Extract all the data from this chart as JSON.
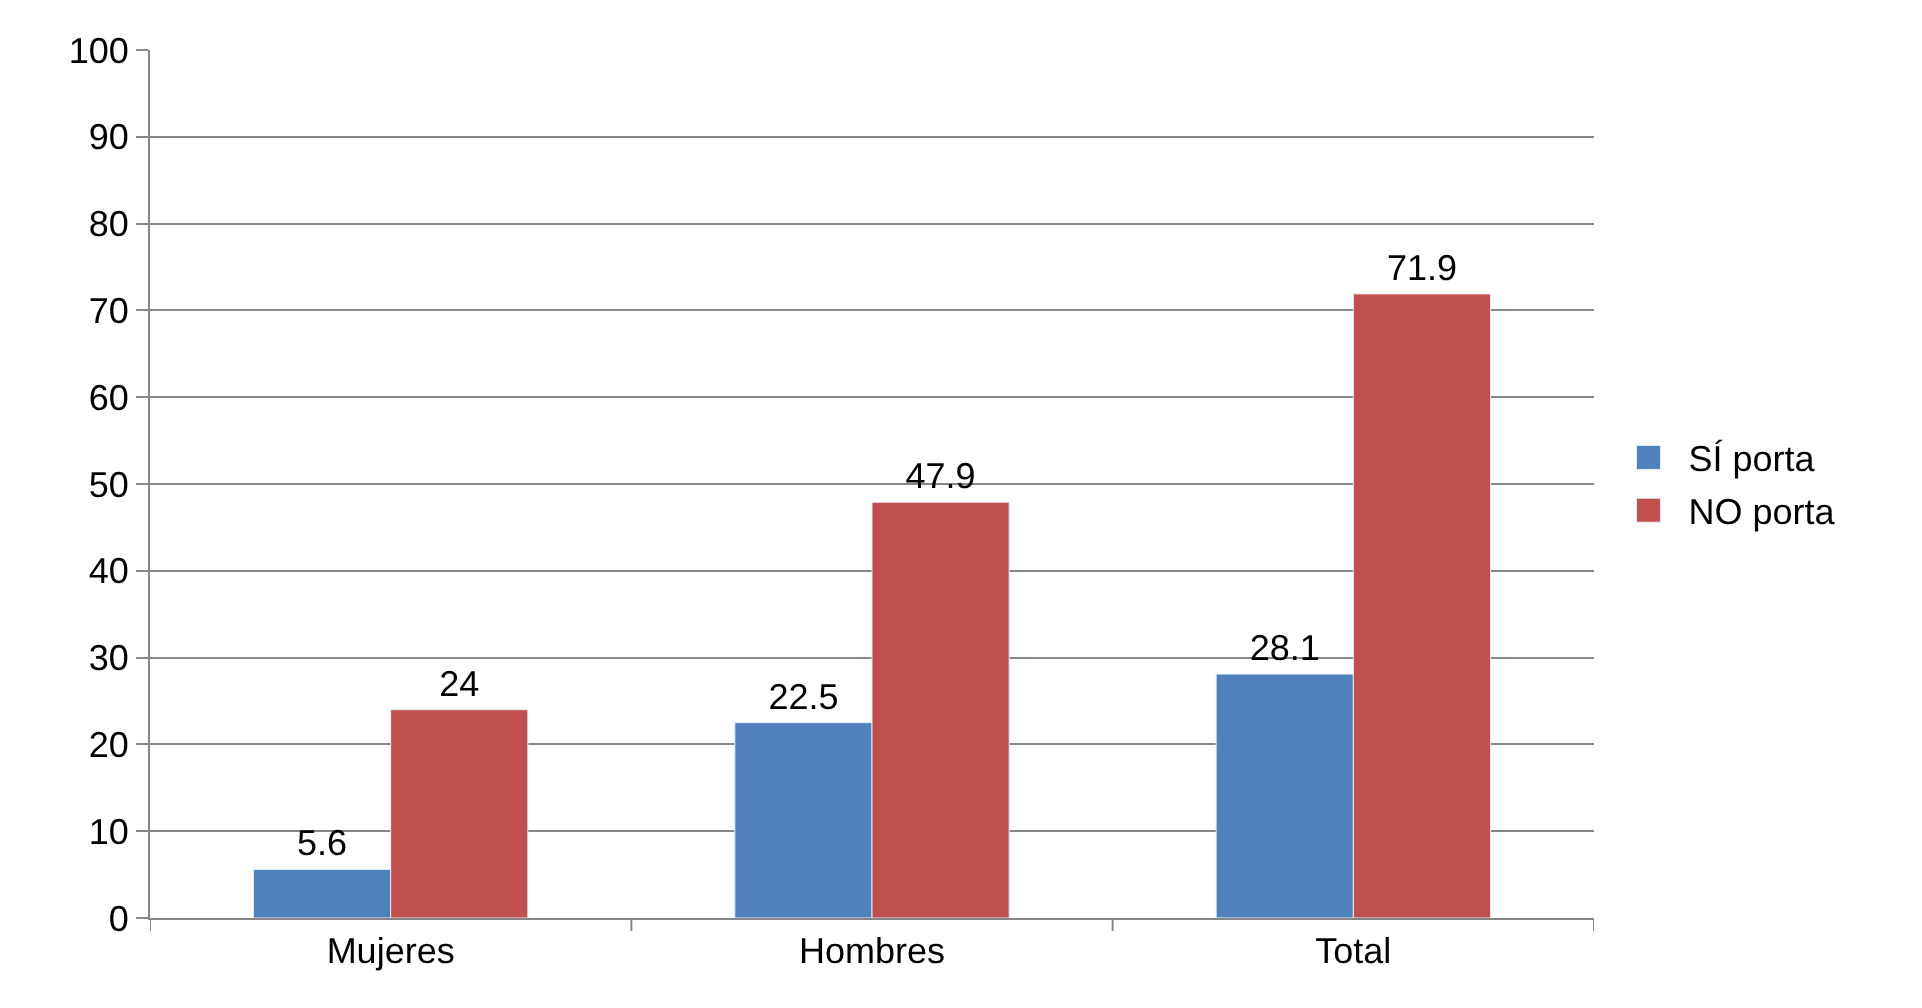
{
  "chart_data": {
    "type": "bar",
    "categories": [
      "Mujeres",
      "Hombres",
      "Total"
    ],
    "series": [
      {
        "name": "SÍ porta",
        "color": "#4f81bd",
        "values": [
          5.6,
          22.5,
          28.1
        ]
      },
      {
        "name": "NO porta",
        "color": "#c0504d",
        "values": [
          24,
          47.9,
          71.9
        ]
      }
    ],
    "ylim": [
      0,
      100
    ],
    "yticks": [
      0,
      10,
      20,
      30,
      40,
      50,
      60,
      70,
      80,
      90,
      100
    ],
    "grid": "y",
    "legend": "right",
    "data_labels": true
  }
}
